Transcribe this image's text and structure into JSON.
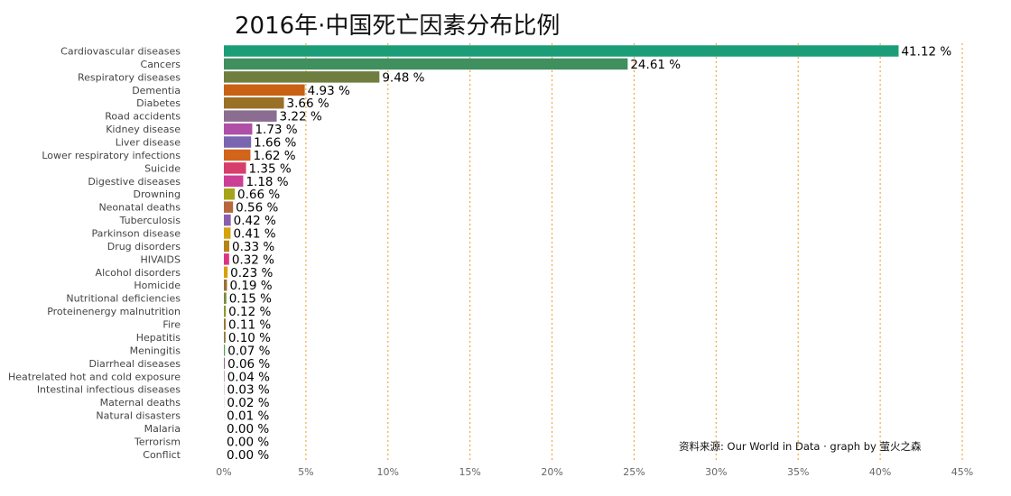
{
  "chart_data": {
    "type": "bar",
    "orientation": "horizontal",
    "title": "2016年·中国死亡因素分布比例",
    "source": "资料来源: Our World in Data · graph by 萤火之森",
    "xlim": [
      0,
      45
    ],
    "xticks": [
      "0%",
      "5%",
      "10%",
      "15%",
      "20%",
      "25%",
      "30%",
      "35%",
      "40%",
      "45%"
    ],
    "grid": "vertical dotted, orange",
    "categories": [
      "Cardiovascular diseases",
      "Cancers",
      "Respiratory diseases",
      "Dementia",
      "Diabetes",
      "Road accidents",
      "Kidney disease",
      "Liver disease",
      "Lower respiratory infections",
      "Suicide",
      "Digestive diseases",
      "Drowning",
      "Neonatal deaths",
      "Tuberculosis",
      "Parkinson disease",
      "Drug disorders",
      "HIVAIDS",
      "Alcohol disorders",
      "Homicide",
      "Nutritional deficiencies",
      "Proteinenergy malnutrition",
      "Fire",
      "Hepatitis",
      "Meningitis",
      "Diarrheal diseases",
      "Heatrelated hot and cold exposure",
      "Intestinal infectious diseases",
      "Maternal deaths",
      "Natural disasters",
      "Malaria",
      "Terrorism",
      "Conflict"
    ],
    "values": [
      41.12,
      24.61,
      9.48,
      4.93,
      3.66,
      3.22,
      1.73,
      1.66,
      1.62,
      1.35,
      1.18,
      0.66,
      0.56,
      0.42,
      0.41,
      0.33,
      0.32,
      0.23,
      0.19,
      0.15,
      0.12,
      0.11,
      0.1,
      0.07,
      0.06,
      0.04,
      0.03,
      0.02,
      0.01,
      0.0,
      0.0,
      0.0
    ],
    "value_labels": [
      "41.12 %",
      "24.61 %",
      "9.48 %",
      "4.93 %",
      "3.66 %",
      "3.22 %",
      "1.73 %",
      "1.66 %",
      "1.62 %",
      "1.35 %",
      "1.18 %",
      "0.66 %",
      "0.56 %",
      "0.42 %",
      "0.41 %",
      "0.33 %",
      "0.32 %",
      "0.23 %",
      "0.19 %",
      "0.15 %",
      "0.12 %",
      "0.11 %",
      "0.10 %",
      "0.07 %",
      "0.06 %",
      "0.04 %",
      "0.03 %",
      "0.02 %",
      "0.01 %",
      "0.00 %",
      "0.00 %",
      "0.00 %"
    ],
    "colors": [
      "#1b9e77",
      "#3f8f5f",
      "#6f7e3f",
      "#c86114",
      "#9a7027",
      "#8a6d90",
      "#b04fa8",
      "#7a66b0",
      "#d2641c",
      "#d63e6c",
      "#cc3f94",
      "#a6a41a",
      "#b8663c",
      "#8a5eae",
      "#d6a30f",
      "#b58318",
      "#dc3582",
      "#d8a00c",
      "#9a6f34",
      "#7a8a3a",
      "#8a9a26",
      "#9a7a2c",
      "#8a7a3a",
      "#5fa055",
      "#9a6e8a",
      "#b090a8",
      "#c8b0b8",
      "#d8c8a8",
      "#c8d0c0",
      "#cccccc",
      "#cccccc",
      "#cccccc"
    ]
  }
}
